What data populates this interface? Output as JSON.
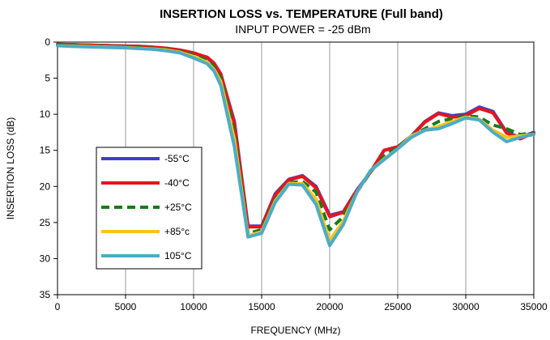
{
  "chart_data": {
    "type": "line",
    "title": "INSERTION LOSS vs. TEMPERATURE (Full band)",
    "subtitle": "INPUT POWER = -25 dBm",
    "xlabel": "FREQUENCY (MHz)",
    "ylabel": "INSERTION LOSS (dB)",
    "xlim": [
      0,
      35000
    ],
    "ylim": [
      0,
      35
    ],
    "y_inverted": true,
    "xticks": [
      0,
      5000,
      10000,
      15000,
      20000,
      25000,
      30000,
      35000
    ],
    "yticks": [
      0,
      5,
      10,
      15,
      20,
      25,
      30,
      35
    ],
    "grid": "vertical",
    "legend_position": "left-center",
    "x": [
      0,
      1000,
      2000,
      3000,
      4000,
      5000,
      6000,
      7000,
      8000,
      9000,
      10000,
      11000,
      11500,
      12000,
      13000,
      14000,
      15000,
      16000,
      17000,
      18000,
      19000,
      20000,
      21000,
      22000,
      23000,
      24000,
      25000,
      26000,
      27000,
      28000,
      29000,
      30000,
      31000,
      32000,
      33000,
      34000,
      35000
    ],
    "series": [
      {
        "name": "-55°C",
        "color": "#3f3fc6",
        "dash": "solid",
        "values": [
          0.3,
          0.35,
          0.4,
          0.45,
          0.5,
          0.55,
          0.6,
          0.7,
          0.85,
          1.1,
          1.5,
          2.2,
          3.0,
          4.5,
          11.0,
          25.5,
          25.5,
          21.0,
          19.0,
          18.5,
          20.0,
          24.0,
          23.5,
          20.5,
          18.0,
          15.0,
          14.5,
          13.0,
          11.0,
          9.8,
          10.2,
          10.0,
          9.0,
          9.6,
          12.5,
          13.2,
          12.5
        ]
      },
      {
        "name": "-40°C",
        "color": "#e8141c",
        "dash": "solid",
        "values": [
          0.3,
          0.35,
          0.4,
          0.45,
          0.5,
          0.55,
          0.6,
          0.7,
          0.85,
          1.1,
          1.5,
          2.1,
          2.9,
          4.4,
          11.3,
          25.6,
          25.6,
          21.2,
          19.1,
          18.6,
          20.2,
          24.2,
          23.6,
          20.6,
          18.0,
          15.0,
          14.5,
          13.1,
          11.1,
          9.9,
          10.4,
          10.2,
          9.2,
          9.8,
          12.6,
          13.4,
          12.6
        ]
      },
      {
        "name": "+25°C",
        "color": "#1a7a1a",
        "dash": "dashed",
        "values": [
          0.4,
          0.45,
          0.5,
          0.55,
          0.6,
          0.65,
          0.75,
          0.85,
          1.0,
          1.3,
          1.8,
          2.5,
          3.4,
          5.0,
          12.5,
          26.5,
          26.0,
          21.8,
          19.5,
          19.3,
          20.8,
          26.0,
          24.2,
          20.8,
          18.0,
          15.8,
          14.6,
          13.0,
          12.0,
          11.0,
          10.6,
          10.2,
          10.4,
          11.5,
          12.0,
          12.8,
          12.6
        ]
      },
      {
        "name": "+85°c",
        "color": "#f9c31a",
        "dash": "solid",
        "values": [
          0.5,
          0.55,
          0.6,
          0.65,
          0.7,
          0.75,
          0.85,
          0.95,
          1.1,
          1.4,
          2.0,
          2.8,
          3.8,
          5.5,
          13.5,
          26.8,
          26.3,
          22.0,
          19.6,
          19.6,
          21.8,
          27.5,
          24.8,
          20.8,
          17.8,
          16.2,
          14.8,
          13.0,
          12.2,
          11.7,
          11.0,
          10.4,
          10.7,
          12.2,
          13.2,
          13.0,
          12.8
        ]
      },
      {
        "name": "105°C",
        "color": "#4bacc6",
        "dash": "solid",
        "values": [
          0.5,
          0.6,
          0.65,
          0.7,
          0.75,
          0.8,
          0.9,
          1.0,
          1.2,
          1.5,
          2.2,
          3.0,
          4.0,
          6.0,
          14.5,
          27.0,
          26.5,
          22.2,
          19.7,
          19.8,
          22.5,
          28.2,
          25.3,
          20.8,
          17.8,
          16.3,
          14.8,
          13.2,
          12.2,
          12.0,
          11.3,
          10.5,
          10.8,
          12.5,
          13.8,
          13.2,
          12.8
        ]
      }
    ]
  }
}
